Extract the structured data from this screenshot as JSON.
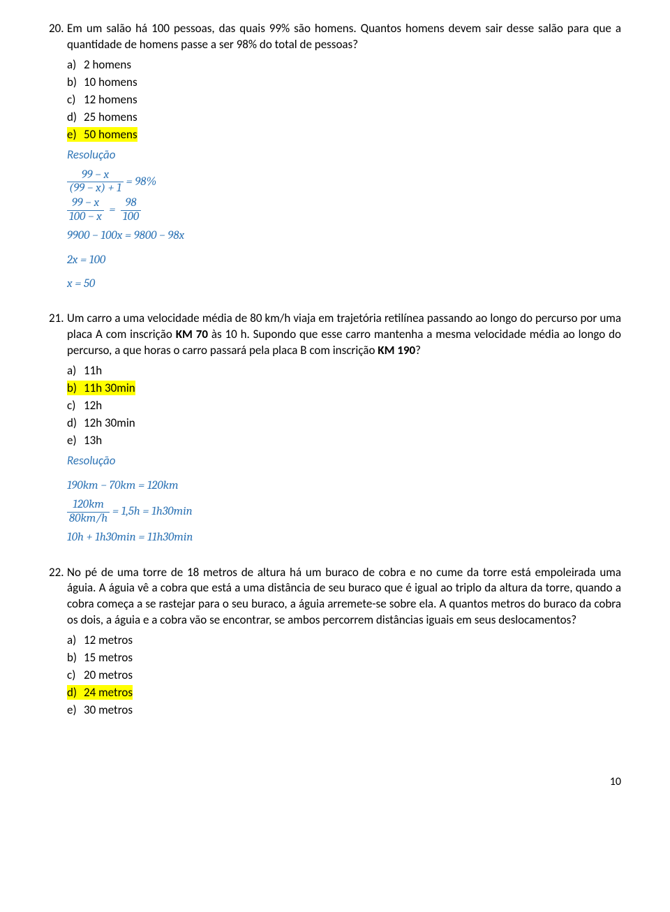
{
  "q20": {
    "num": "20.",
    "text": "Em um salão há 100 pessoas, das quais 99% são homens. Quantos homens devem sair desse salão para que a quantidade de homens passe a ser 98% do total de pessoas?",
    "opts": {
      "a": "a)",
      "a_t": "2 homens",
      "b": "b)",
      "b_t": "10 homens",
      "c": "c)",
      "c_t": "12 homens",
      "d": "d)",
      "d_t": "25 homens",
      "e": "e)",
      "e_t": "50 homens"
    },
    "res": "Resolução",
    "m": {
      "l1n": "99 − x",
      "l1d": "(99 − x) + 1",
      "l1r": " = 98%",
      "l2na": "99 − x",
      "l2da": "100 − x",
      "l2nb": "98",
      "l2db": "100",
      "l3": "9900 − 100x = 9800 − 98x",
      "l4": "2x = 100",
      "l5": "x = 50"
    }
  },
  "q21": {
    "num": "21.",
    "text": "Um carro a uma velocidade média de 80 km/h viaja em trajetória retilínea passando ao longo do percurso por uma placa A com inscrição KM 70 às 10 h. Supondo que esse carro mantenha a mesma velocidade média ao longo do percurso, a que horas o carro passará pela placa B com inscrição  KM 190?",
    "km70": "KM 70",
    "km190": "KM 190",
    "opts": {
      "a": "a)",
      "a_t": "11h",
      "b": "b)",
      "b_t": "11h 30min",
      "c": "c)",
      "c_t": "12h",
      "d": "d)",
      "d_t": "12h 30min",
      "e": "e)",
      "e_t": "13h"
    },
    "res": "Resolução",
    "m": {
      "l1": "190km − 70km = 120km",
      "l2n": "120km",
      "l2d": "80km/h",
      "l2r": " = 1,5h = 1h30min",
      "l3": "10h + 1h30min = 11h30min"
    }
  },
  "q22": {
    "num": "22.",
    "text": "No pé de uma torre de 18 metros de altura há um buraco de cobra e no cume da torre está empoleirada uma águia. A águia vê a cobra que está a uma distância de seu buraco que é igual ao triplo da altura da torre, quando a cobra começa a se rastejar para o seu buraco, a águia arremete-se sobre ela. A quantos metros do buraco da cobra os dois, a águia e a cobra vão se encontrar, se ambos percorrem distâncias iguais em seus deslocamentos?",
    "opts": {
      "a": "a)",
      "a_t": "12 metros",
      "b": "b)",
      "b_t": "15 metros",
      "c": "c)",
      "c_t": "20 metros",
      "d": "d)",
      "d_t": "24 metros",
      "e": "e)",
      "e_t": "30 metros"
    }
  },
  "page": "10"
}
